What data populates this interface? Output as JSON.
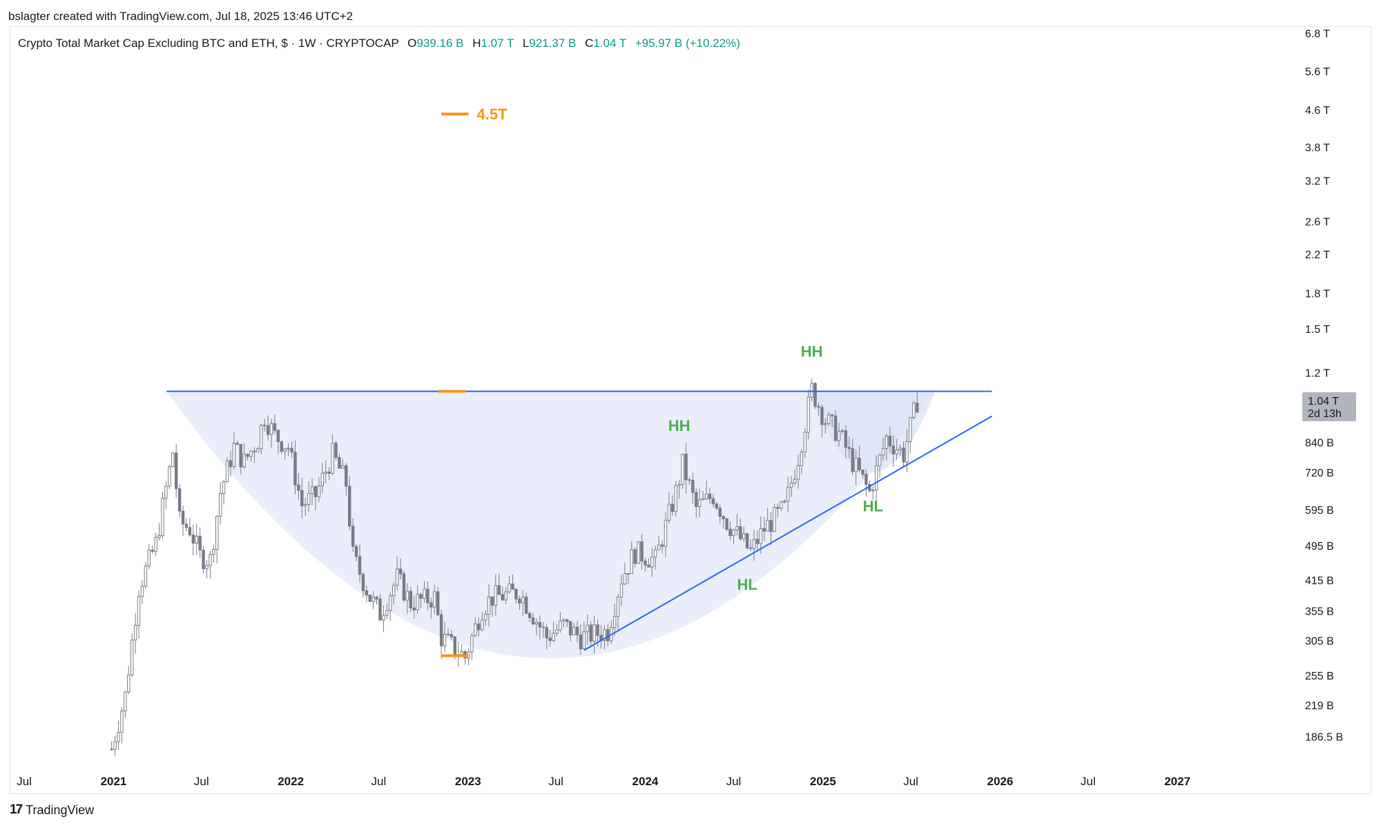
{
  "header": {
    "credit": "bslagter created with TradingView.com, Jul 18, 2025 13:46 UTC+2"
  },
  "legend": {
    "symbol": "Crypto Total Market Cap Excluding BTC and ETH, $ · 1W · CRYPTOCAP",
    "open_label": "O",
    "open_value": "939.16 B",
    "high_label": "H",
    "high_value": "1.07 T",
    "low_label": "L",
    "low_value": "921.37 B",
    "close_label": "C",
    "close_value": "1.04 T",
    "change": "+95.97 B (+10.22%)"
  },
  "footer": {
    "brand": "TradingView"
  },
  "colors": {
    "up": "#089981",
    "candle": "#787b86",
    "trendline": "#2962ff",
    "orange": "#f7931a",
    "shape_fill": "#dbe3f7",
    "label_green": "#4caf50"
  },
  "chart_data": {
    "type": "candlestick",
    "title": "Crypto Total Market Cap Excluding BTC and ETH, $ · 1W · CRYPTOCAP",
    "y_scale": "log",
    "ylim": [
      160000000000.0,
      7000000000000.0
    ],
    "xlim": [
      "2020-06-01",
      "2027-09-01"
    ],
    "y_ticks": [
      {
        "value": 6800000000000.0,
        "label": "6.8 T"
      },
      {
        "value": 5600000000000.0,
        "label": "5.6 T"
      },
      {
        "value": 4600000000000.0,
        "label": "4.6 T"
      },
      {
        "value": 3800000000000.0,
        "label": "3.8 T"
      },
      {
        "value": 3200000000000.0,
        "label": "3.2 T"
      },
      {
        "value": 2600000000000.0,
        "label": "2.6 T"
      },
      {
        "value": 2200000000000.0,
        "label": "2.2 T"
      },
      {
        "value": 1800000000000.0,
        "label": "1.8 T"
      },
      {
        "value": 1500000000000.0,
        "label": "1.5 T"
      },
      {
        "value": 1200000000000.0,
        "label": "1.2 T"
      },
      {
        "value": 840000000000.0,
        "label": "840 B"
      },
      {
        "value": 720000000000.0,
        "label": "720 B"
      },
      {
        "value": 595000000000.0,
        "label": "595 B"
      },
      {
        "value": 495000000000.0,
        "label": "495 B"
      },
      {
        "value": 415000000000.0,
        "label": "415 B"
      },
      {
        "value": 355000000000.0,
        "label": "355 B"
      },
      {
        "value": 305000000000.0,
        "label": "305 B"
      },
      {
        "value": 255000000000.0,
        "label": "255 B"
      },
      {
        "value": 219000000000.0,
        "label": "219 B"
      },
      {
        "value": 186500000000.0,
        "label": "186.5 B"
      }
    ],
    "x_ticks": [
      {
        "date": "2020-07-01",
        "label": "Jul",
        "bold": false
      },
      {
        "date": "2021-01-01",
        "label": "2021",
        "bold": true
      },
      {
        "date": "2021-07-01",
        "label": "Jul",
        "bold": false
      },
      {
        "date": "2022-01-01",
        "label": "2022",
        "bold": true
      },
      {
        "date": "2022-07-01",
        "label": "Jul",
        "bold": false
      },
      {
        "date": "2023-01-01",
        "label": "2023",
        "bold": true
      },
      {
        "date": "2023-07-01",
        "label": "Jul",
        "bold": false
      },
      {
        "date": "2024-01-01",
        "label": "2024",
        "bold": true
      },
      {
        "date": "2024-07-01",
        "label": "Jul",
        "bold": false
      },
      {
        "date": "2025-01-01",
        "label": "2025",
        "bold": true
      },
      {
        "date": "2025-07-01",
        "label": "Jul",
        "bold": false
      },
      {
        "date": "2026-01-01",
        "label": "2026",
        "bold": true
      },
      {
        "date": "2026-07-01",
        "label": "Jul",
        "bold": false
      },
      {
        "date": "2027-01-01",
        "label": "2027",
        "bold": true
      }
    ],
    "price_path": [
      [
        "2020-12-28",
        175000000000.0
      ],
      [
        "2021-01-25",
        230000000000.0
      ],
      [
        "2021-02-22",
        400000000000.0
      ],
      [
        "2021-03-29",
        500000000000.0
      ],
      [
        "2021-05-03",
        800000000000.0
      ],
      [
        "2021-05-17",
        560000000000.0
      ],
      [
        "2021-06-07",
        540000000000.0
      ],
      [
        "2021-06-28",
        470000000000.0
      ],
      [
        "2021-07-19",
        460000000000.0
      ],
      [
        "2021-08-09",
        650000000000.0
      ],
      [
        "2021-09-06",
        820000000000.0
      ],
      [
        "2021-09-27",
        760000000000.0
      ],
      [
        "2021-10-25",
        850000000000.0
      ],
      [
        "2021-11-08",
        960000000000.0
      ],
      [
        "2021-11-29",
        870000000000.0
      ],
      [
        "2021-12-27",
        820000000000.0
      ],
      [
        "2022-01-24",
        610000000000.0
      ],
      [
        "2022-02-21",
        640000000000.0
      ],
      [
        "2022-03-28",
        790000000000.0
      ],
      [
        "2022-04-25",
        680000000000.0
      ],
      [
        "2022-05-09",
        470000000000.0
      ],
      [
        "2022-06-13",
        380000000000.0
      ],
      [
        "2022-07-04",
        350000000000.0
      ],
      [
        "2022-08-08",
        420000000000.0
      ],
      [
        "2022-09-05",
        370000000000.0
      ],
      [
        "2022-10-24",
        380000000000.0
      ],
      [
        "2022-11-07",
        310000000000.0
      ],
      [
        "2022-12-26",
        280000000000.0
      ],
      [
        "2023-01-30",
        360000000000.0
      ],
      [
        "2023-02-20",
        380000000000.0
      ],
      [
        "2023-04-17",
        390000000000.0
      ],
      [
        "2023-06-12",
        310000000000.0
      ],
      [
        "2023-07-17",
        330000000000.0
      ],
      [
        "2023-08-21",
        310000000000.0
      ],
      [
        "2023-10-16",
        320000000000.0
      ],
      [
        "2023-11-13",
        420000000000.0
      ],
      [
        "2023-12-11",
        480000000000.0
      ],
      [
        "2024-01-22",
        460000000000.0
      ],
      [
        "2024-03-04",
        650000000000.0
      ],
      [
        "2024-03-18",
        750000000000.0
      ],
      [
        "2024-04-15",
        600000000000.0
      ],
      [
        "2024-05-20",
        640000000000.0
      ],
      [
        "2024-06-17",
        560000000000.0
      ],
      [
        "2024-08-05",
        480000000000.0
      ],
      [
        "2024-09-02",
        540000000000.0
      ],
      [
        "2024-10-14",
        600000000000.0
      ],
      [
        "2024-11-11",
        780000000000.0
      ],
      [
        "2024-12-09",
        1100000000000.0
      ],
      [
        "2025-01-06",
        940000000000.0
      ],
      [
        "2025-02-03",
        880000000000.0
      ],
      [
        "2025-03-03",
        760000000000.0
      ],
      [
        "2025-04-07",
        650000000000.0
      ],
      [
        "2025-05-12",
        860000000000.0
      ],
      [
        "2025-06-16",
        790000000000.0
      ],
      [
        "2025-07-14",
        1040000000000.0
      ]
    ],
    "last_price": {
      "value": 1040000000000.0,
      "label": "1.04 T",
      "countdown": "2d 13h"
    },
    "annotations": [
      {
        "type": "hline",
        "name": "resistance",
        "from": "2021-04-20",
        "to": "2025-12-15",
        "value": 1090000000000.0
      },
      {
        "type": "trendline",
        "name": "rising-support",
        "from": [
          "2023-08-28",
          290000000000.0
        ],
        "to": [
          "2025-12-15",
          960000000000.0
        ]
      },
      {
        "type": "arc",
        "name": "cup",
        "from": "2021-04-20",
        "to": "2025-08-20",
        "rim": 1090000000000.0,
        "bottom": 278000000000.0
      },
      {
        "type": "arc",
        "name": "handle",
        "from": "2024-12-02",
        "to": "2025-08-20",
        "rim": 1090000000000.0,
        "bottom": 720000000000.0
      },
      {
        "type": "marker",
        "name": "cup-top-marker",
        "from": "2022-11-01",
        "to": "2022-12-27",
        "value": 1090000000000.0
      },
      {
        "type": "marker",
        "name": "cup-bottom-marker",
        "from": "2022-11-07",
        "to": "2023-01-02",
        "value": 282000000000.0
      },
      {
        "type": "target",
        "name": "price-target",
        "from": "2022-11-07",
        "to": "2023-01-02",
        "value": 4500000000000.0,
        "label": "4.5T"
      },
      {
        "type": "label",
        "text": "HH",
        "date": "2024-03-11",
        "value": 890000000000.0
      },
      {
        "type": "label",
        "text": "HL",
        "date": "2024-07-29",
        "value": 395000000000.0
      },
      {
        "type": "label",
        "text": "HH",
        "date": "2024-12-09",
        "value": 1300000000000.0
      },
      {
        "type": "label",
        "text": "HL",
        "date": "2025-04-14",
        "value": 590000000000.0
      }
    ]
  }
}
